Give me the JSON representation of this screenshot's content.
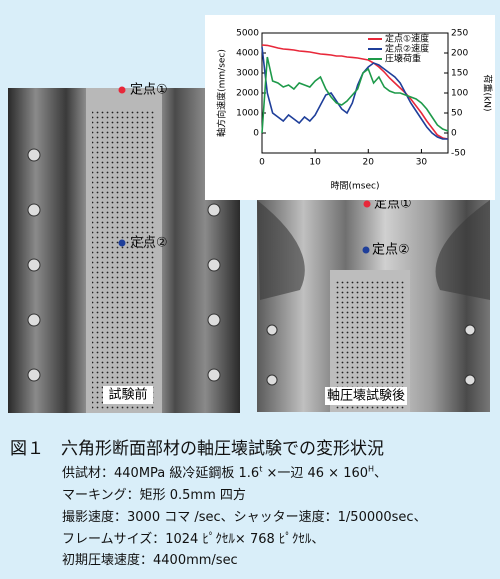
{
  "photos": {
    "point1": "定点①",
    "point2": "定点②",
    "before": "試験前",
    "after": "軸圧壊試験後"
  },
  "chart_data": {
    "type": "line",
    "y_label": "軸方向速度(mm/sec)",
    "y2_label": "荷重(kN)",
    "x_label": "時間(msec)",
    "x": [
      0,
      1,
      2,
      3,
      4,
      5,
      6,
      7,
      8,
      9,
      10,
      11,
      12,
      13,
      14,
      15,
      16,
      17,
      18,
      19,
      20,
      21,
      22,
      23,
      24,
      25,
      26,
      27,
      28,
      29,
      30,
      31,
      32,
      33,
      34,
      35
    ],
    "xlim": [
      0,
      35
    ],
    "xticks": [
      0,
      10,
      20,
      30
    ],
    "ylim": [
      -1000,
      5000
    ],
    "yticks": [
      0,
      1000,
      2000,
      3000,
      4000,
      5000
    ],
    "y2lim": [
      -50,
      250
    ],
    "y2ticks": [
      -50,
      0,
      50,
      100,
      150,
      200,
      250
    ],
    "legend": "upper right",
    "series": [
      {
        "name": "定点①速度",
        "color": "#e8283a",
        "values": [
          4400,
          4380,
          4320,
          4250,
          4200,
          4180,
          4150,
          4100,
          4080,
          4050,
          4000,
          3950,
          3930,
          3900,
          3850,
          3850,
          3800,
          3780,
          3750,
          3700,
          3650,
          3500,
          3300,
          3050,
          2750,
          2500,
          2250,
          2000,
          1700,
          1350,
          1000,
          600,
          250,
          -100,
          -250,
          -300
        ]
      },
      {
        "name": "定点②速度",
        "color": "#1f3f9a",
        "values": [
          4300,
          2000,
          1000,
          800,
          600,
          900,
          700,
          500,
          800,
          600,
          900,
          1400,
          1900,
          2000,
          1600,
          1200,
          1000,
          1500,
          2400,
          3000,
          3300,
          3500,
          3400,
          3200,
          3000,
          2800,
          2500,
          2000,
          1500,
          1100,
          700,
          300,
          0,
          -200,
          -300,
          -300
        ]
      },
      {
        "name": "圧壊荷重",
        "color": "#1e9a4a",
        "axis": "y2",
        "values": [
          0,
          190,
          130,
          125,
          115,
          120,
          110,
          125,
          120,
          115,
          130,
          140,
          110,
          90,
          75,
          70,
          80,
          95,
          110,
          150,
          160,
          125,
          140,
          115,
          105,
          100,
          100,
          95,
          90,
          85,
          75,
          60,
          40,
          20,
          10,
          5
        ]
      }
    ]
  },
  "caption": {
    "title": "図１　六角形断面部材の軸圧壊試験での変形状況",
    "lines": [
      [
        "供試材：440MPa 級冷延鋼板 1.6",
        "t",
        " ×一辺 46 × 160",
        "H",
        "、"
      ],
      [
        "マーキング：矩形 0.5mm 四方"
      ],
      [
        "撮影速度：3000 コマ /sec、シャッター速度：1/50000sec、"
      ],
      [
        "フレームサイズ：1024 ﾋﾟｸｾﾙ× 768 ﾋﾟｸｾﾙ、"
      ],
      [
        "初期圧壊速度：4400mm/sec"
      ]
    ]
  }
}
